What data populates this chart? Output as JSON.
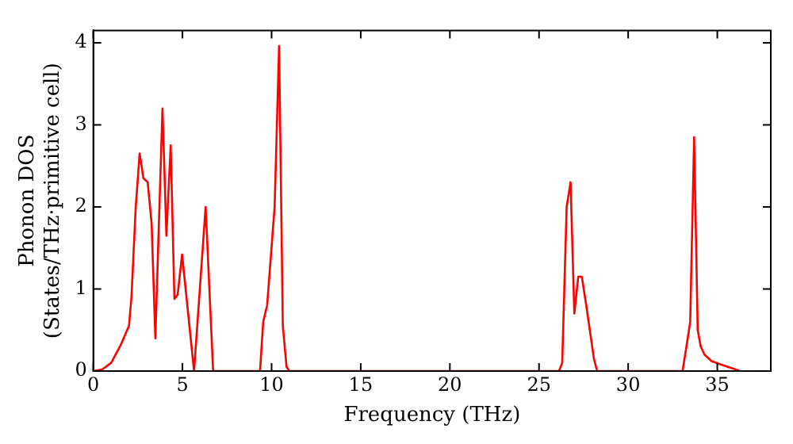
{
  "chart_data": {
    "type": "line",
    "xlabel": "Frequency (THz)",
    "ylabel": "Phonon DOS\n(States/THz·primitive cell)",
    "xlim": [
      0,
      38
    ],
    "ylim": [
      0,
      4.15
    ],
    "xticks": [
      0,
      5,
      10,
      15,
      20,
      25,
      30,
      35
    ],
    "yticks": [
      0,
      1,
      2,
      3,
      4
    ],
    "grid": false,
    "legend": false,
    "marker": "none",
    "line_style": "solid",
    "series": [
      {
        "color": "#ff0000",
        "x": [
          0,
          0.5,
          1,
          1.5,
          2,
          2.14,
          2.38,
          2.6,
          2.81,
          3.05,
          3.27,
          3.48,
          3.88,
          4.1,
          4.34,
          4.55,
          4.73,
          4.98,
          5.65,
          6.3,
          6.72,
          9.35,
          9.53,
          9.75,
          10.17,
          10.42,
          10.63,
          10.84,
          11.0,
          26.12,
          26.3,
          26.55,
          26.77,
          26.98,
          27.2,
          27.4,
          27.65,
          28.08,
          28.26,
          33.05,
          33.27,
          33.48,
          33.7,
          33.9,
          34.07,
          34.28,
          34.68,
          35.2,
          35.9,
          36.26
        ],
        "values": [
          0,
          0.02,
          0.1,
          0.3,
          0.55,
          0.9,
          2.0,
          2.65,
          2.35,
          2.3,
          1.8,
          0.4,
          3.2,
          1.65,
          2.75,
          0.88,
          0.93,
          1.42,
          0,
          2.0,
          0,
          0,
          0.6,
          0.8,
          2.0,
          3.96,
          0.55,
          0.05,
          0,
          0,
          0.1,
          2.0,
          2.3,
          0.7,
          1.15,
          1.15,
          0.8,
          0.15,
          0,
          0,
          0.3,
          0.6,
          2.85,
          0.5,
          0.3,
          0.2,
          0.12,
          0.08,
          0.03,
          0
        ]
      }
    ]
  }
}
